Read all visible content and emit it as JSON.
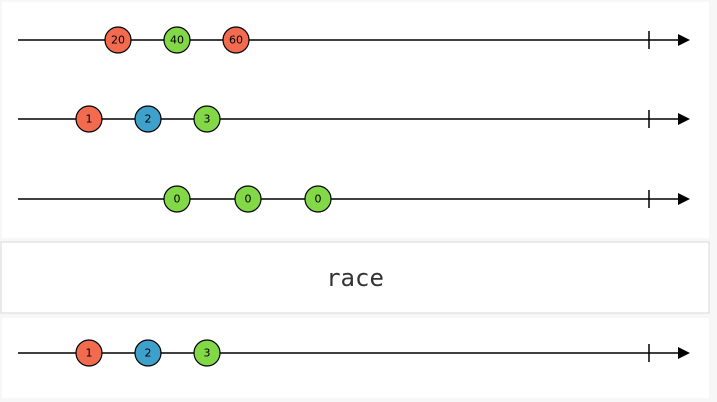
{
  "inputs": [
    {
      "marbles": [
        {
          "label": "20",
          "color": "#f26b4f"
        },
        {
          "label": "40",
          "color": "#82d846"
        },
        {
          "label": "60",
          "color": "#f26b4f"
        }
      ]
    },
    {
      "marbles": [
        {
          "label": "1",
          "color": "#f26b4f"
        },
        {
          "label": "2",
          "color": "#3ea1cb"
        },
        {
          "label": "3",
          "color": "#82d846"
        }
      ]
    },
    {
      "marbles": [
        {
          "label": "0",
          "color": "#82d846"
        },
        {
          "label": "0",
          "color": "#82d846"
        },
        {
          "label": "0",
          "color": "#82d846"
        }
      ]
    }
  ],
  "operator": {
    "label": "race"
  },
  "output": {
    "marbles": [
      {
        "label": "1",
        "color": "#f26b4f"
      },
      {
        "label": "2",
        "color": "#3ea1cb"
      },
      {
        "label": "3",
        "color": "#82d846"
      }
    ]
  }
}
